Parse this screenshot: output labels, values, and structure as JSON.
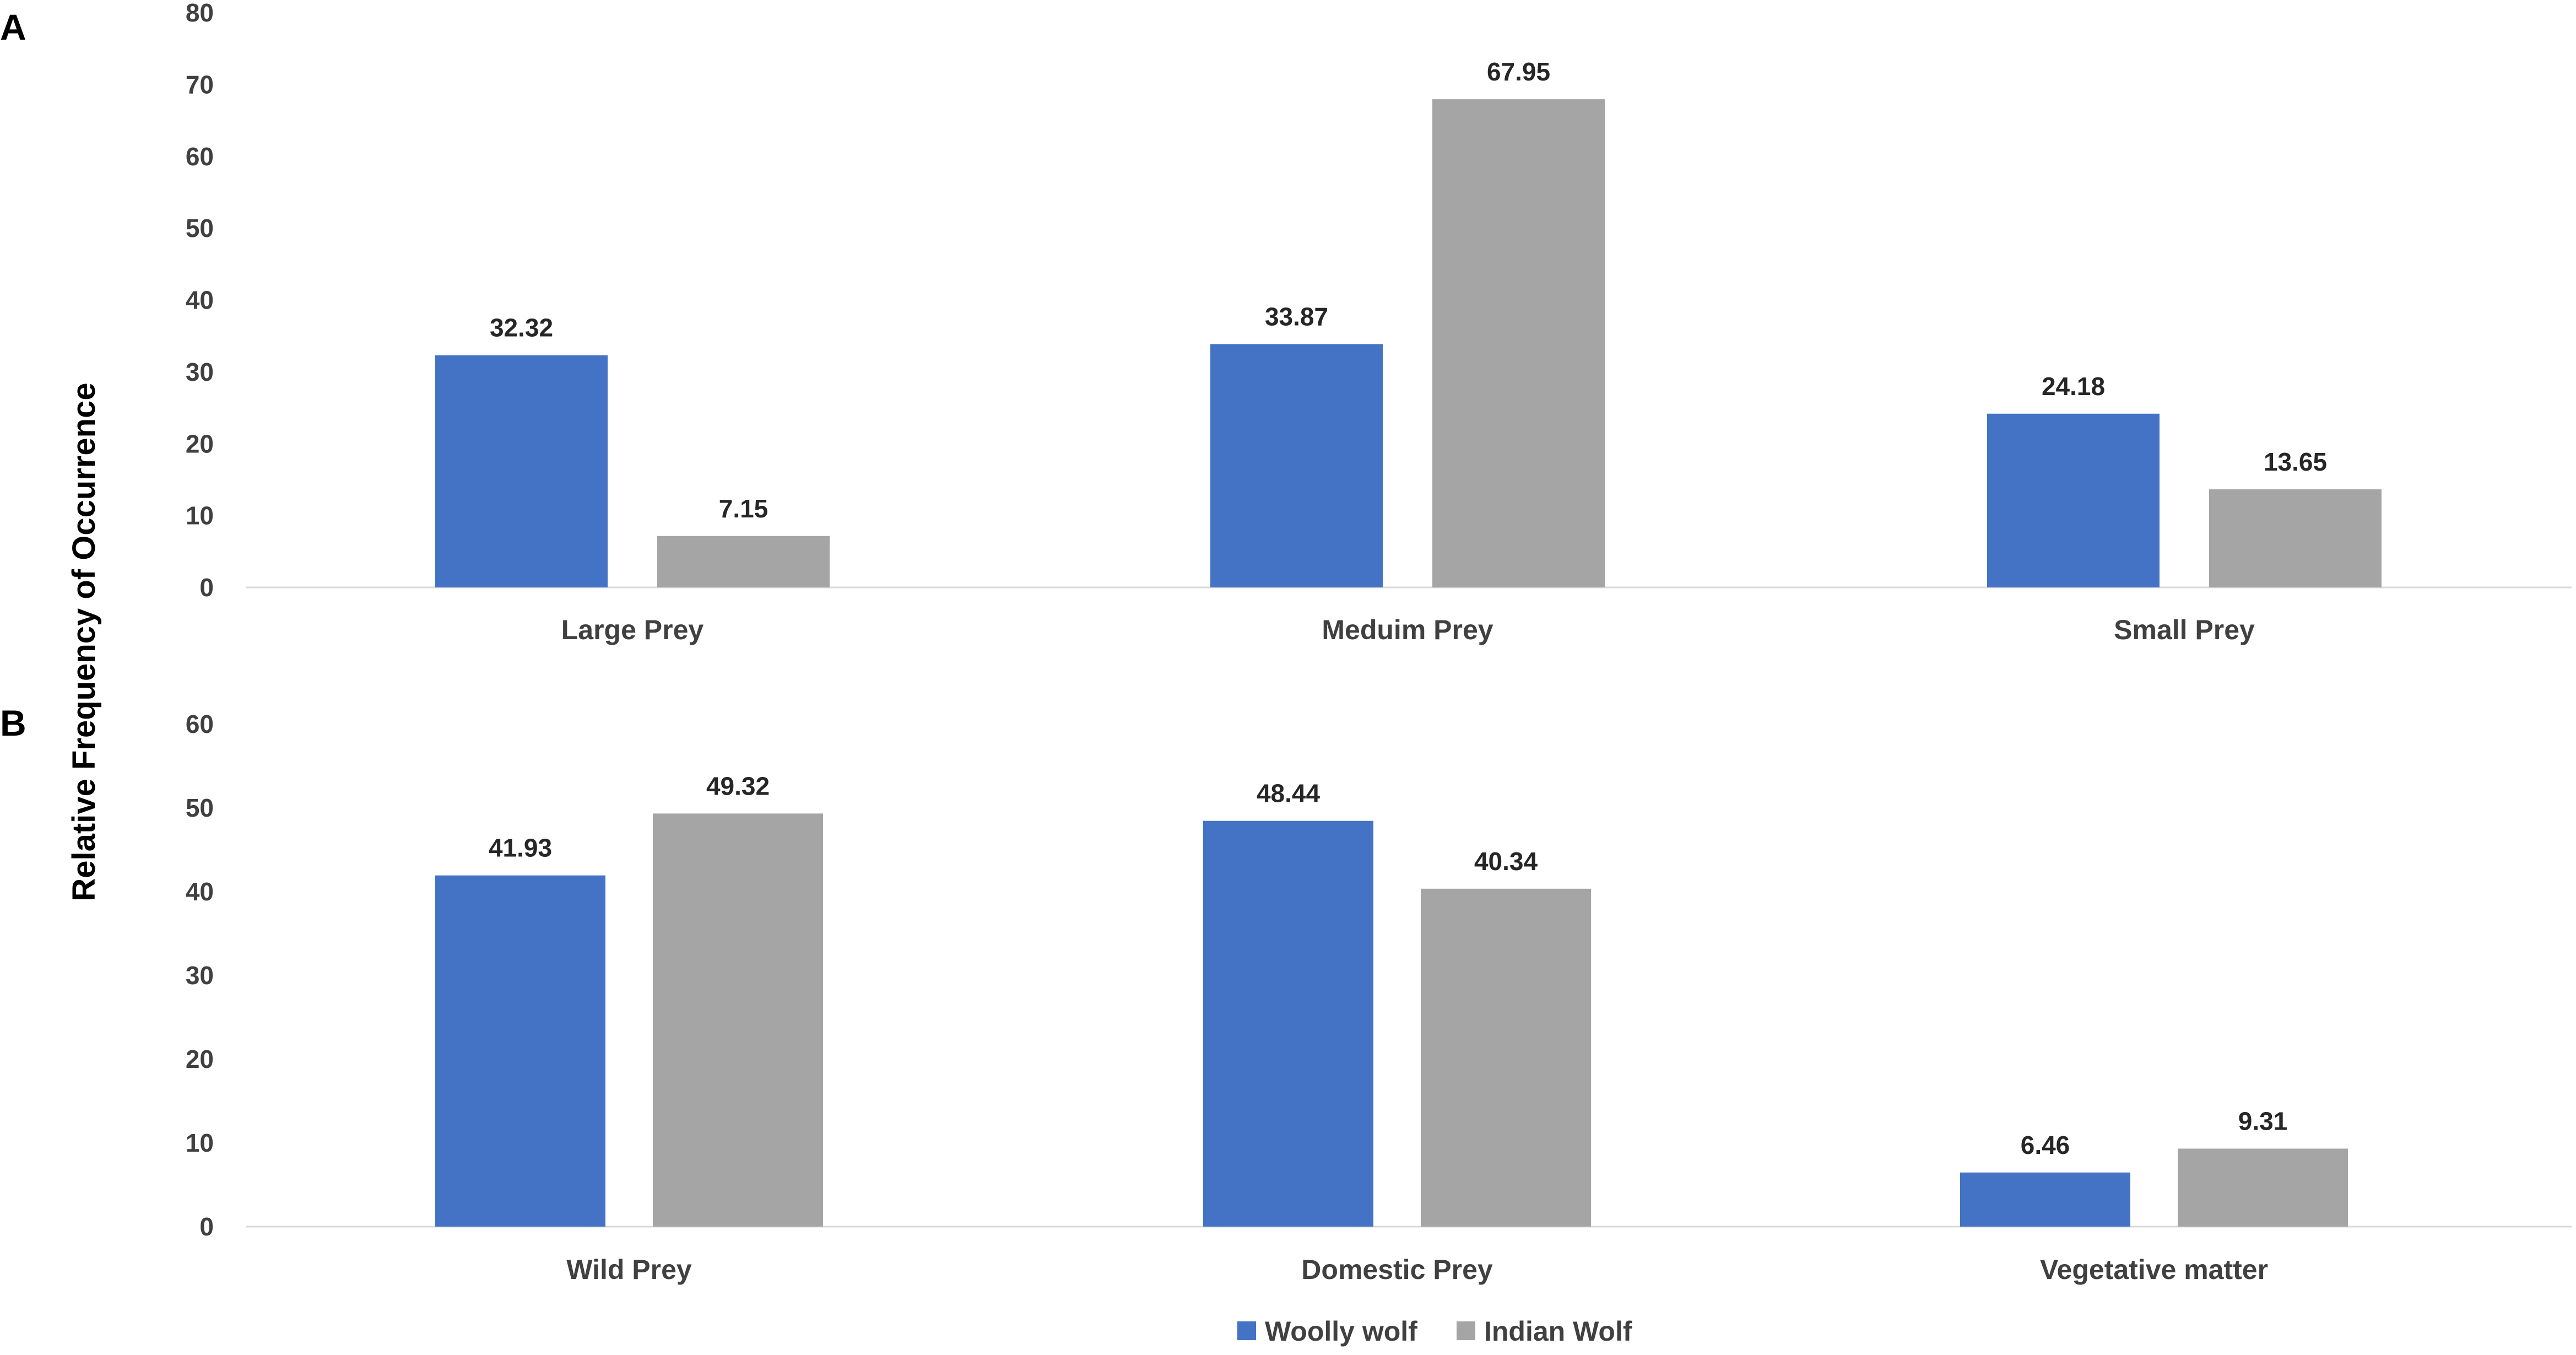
{
  "colors": {
    "woolly": "#4472C4",
    "indian": "#A5A5A5"
  },
  "y_axis_label": "Relative Frequency of Occurrence",
  "legend": [
    {
      "name": "Woolly wolf",
      "color": "#4472C4"
    },
    {
      "name": "Indian Wolf",
      "color": "#A5A5A5"
    }
  ],
  "chart_data": [
    {
      "type": "bar",
      "panel": "A",
      "categories": [
        "Large Prey",
        "Meduim Prey",
        "Small Prey"
      ],
      "ylim": [
        0,
        80
      ],
      "yticks": [
        0,
        10,
        20,
        30,
        40,
        50,
        60,
        70,
        80
      ],
      "ylabel": "Relative Frequency of Occurrence",
      "series": [
        {
          "name": "Woolly wolf",
          "values": [
            32.32,
            33.87,
            24.18
          ],
          "labels": [
            "32.32",
            "33.87",
            "24.18"
          ]
        },
        {
          "name": "Indian Wolf",
          "values": [
            7.15,
            67.95,
            13.65
          ],
          "labels": [
            "7.15",
            "67.95",
            "13.65"
          ]
        }
      ]
    },
    {
      "type": "bar",
      "panel": "B",
      "categories": [
        "Wild Prey",
        "Domestic Prey",
        "Vegetative matter"
      ],
      "ylim": [
        0,
        60
      ],
      "yticks": [
        0,
        10,
        20,
        30,
        40,
        50,
        60
      ],
      "ylabel": "Relative Frequency of Occurrence",
      "series": [
        {
          "name": "Woolly wolf",
          "values": [
            41.93,
            48.44,
            6.46
          ],
          "labels": [
            "41.93",
            "48.44",
            "6.46"
          ]
        },
        {
          "name": "Indian Wolf",
          "values": [
            49.32,
            40.34,
            9.31
          ],
          "labels": [
            "49.32",
            "40.34",
            "9.31"
          ]
        }
      ]
    }
  ]
}
